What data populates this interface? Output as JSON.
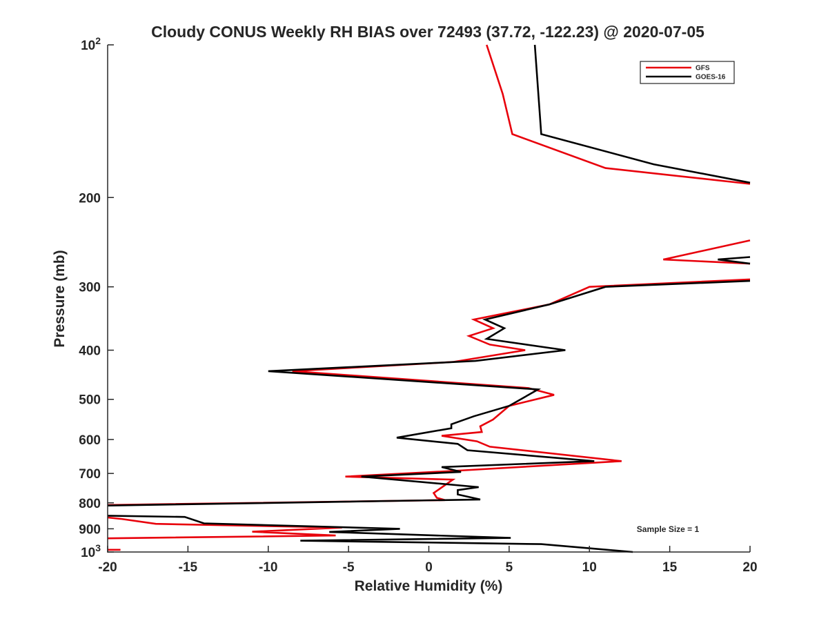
{
  "chart_data": {
    "type": "line",
    "title": "Cloudy CONUS Weekly RH BIAS over 72493 (37.72, -122.23) @ 2020-07-05",
    "xlabel": "Relative Humidity (%)",
    "ylabel": "Pressure (mb)",
    "xlim": [
      -20,
      20
    ],
    "ylim": [
      100,
      1000
    ],
    "y_scale": "log",
    "y_reversed": true,
    "grid": false,
    "legend_position": "top-right",
    "x_ticks": [
      {
        "value": -20,
        "label": "-20"
      },
      {
        "value": -15,
        "label": "-15"
      },
      {
        "value": -10,
        "label": "-10"
      },
      {
        "value": -5,
        "label": "-5"
      },
      {
        "value": 0,
        "label": "0"
      },
      {
        "value": 5,
        "label": "5"
      },
      {
        "value": 10,
        "label": "10"
      },
      {
        "value": 15,
        "label": "15"
      },
      {
        "value": 20,
        "label": "20"
      }
    ],
    "y_ticks": [
      {
        "value": 100,
        "base": "10",
        "exp": "2"
      },
      {
        "value": 200,
        "label": "200"
      },
      {
        "value": 300,
        "label": "300"
      },
      {
        "value": 400,
        "label": "400"
      },
      {
        "value": 500,
        "label": "500"
      },
      {
        "value": 600,
        "label": "600"
      },
      {
        "value": 700,
        "label": "700"
      },
      {
        "value": 800,
        "label": "800"
      },
      {
        "value": 900,
        "label": "900"
      },
      {
        "value": 1000,
        "base": "10",
        "exp": "3"
      }
    ],
    "series": [
      {
        "name": "GFS",
        "color": "#e8000b",
        "points": [
          [
            3.6,
            100
          ],
          [
            4.6,
            125
          ],
          [
            5.2,
            150
          ],
          [
            11.0,
            175
          ],
          [
            20,
            188
          ],
          [
            null,
            null
          ],
          [
            20,
            243
          ],
          [
            14.6,
            265
          ],
          [
            20,
            270
          ],
          [
            null,
            null
          ],
          [
            20,
            290
          ],
          [
            10.0,
            300
          ],
          [
            7.5,
            325
          ],
          [
            2.8,
            348
          ],
          [
            4.0,
            362
          ],
          [
            2.5,
            375
          ],
          [
            3.8,
            390
          ],
          [
            6.0,
            400
          ],
          [
            1.5,
            422
          ],
          [
            -8.5,
            440
          ],
          [
            6.2,
            475
          ],
          [
            7.8,
            490
          ],
          [
            5.0,
            515
          ],
          [
            4.0,
            548
          ],
          [
            3.2,
            565
          ],
          [
            3.3,
            580
          ],
          [
            0.8,
            590
          ],
          [
            3.0,
            605
          ],
          [
            3.8,
            620
          ],
          [
            12.0,
            662
          ],
          [
            1.5,
            692
          ],
          [
            -5.2,
            710
          ],
          [
            1.5,
            720
          ],
          [
            0.3,
            765
          ],
          [
            0.5,
            782
          ],
          [
            1.0,
            790
          ],
          [
            -20,
            808
          ],
          [
            null,
            null
          ],
          [
            -20,
            855
          ],
          [
            -19.2,
            860
          ],
          [
            -17.0,
            880
          ],
          [
            -5.4,
            895
          ],
          [
            -11.0,
            912
          ],
          [
            -5.8,
            928
          ],
          [
            -20,
            940
          ],
          [
            null,
            null
          ],
          [
            -20,
            990
          ],
          [
            -19.2,
            990
          ]
        ]
      },
      {
        "name": "GOES-16",
        "color": "#000000",
        "points": [
          [
            6.6,
            100
          ],
          [
            7.0,
            150
          ],
          [
            14.0,
            172
          ],
          [
            20,
            187
          ],
          [
            null,
            null
          ],
          [
            20,
            262
          ],
          [
            18.0,
            265
          ],
          [
            20,
            270
          ],
          [
            null,
            null
          ],
          [
            20,
            292
          ],
          [
            11.0,
            300
          ],
          [
            7.5,
            325
          ],
          [
            3.5,
            348
          ],
          [
            4.7,
            362
          ],
          [
            3.6,
            380
          ],
          [
            8.5,
            400
          ],
          [
            2.9,
            420
          ],
          [
            -10.0,
            440
          ],
          [
            6.8,
            478
          ],
          [
            5.0,
            515
          ],
          [
            2.8,
            540
          ],
          [
            1.4,
            560
          ],
          [
            1.4,
            570
          ],
          [
            -2.0,
            595
          ],
          [
            1.8,
            612
          ],
          [
            2.4,
            630
          ],
          [
            10.3,
            662
          ],
          [
            0.8,
            680
          ],
          [
            2.0,
            695
          ],
          [
            -4.2,
            710
          ],
          [
            3.1,
            745
          ],
          [
            1.8,
            755
          ],
          [
            1.8,
            770
          ],
          [
            3.2,
            788
          ],
          [
            -20,
            810
          ],
          [
            null,
            null
          ],
          [
            -20,
            848
          ],
          [
            -15.2,
            853
          ],
          [
            -14.0,
            878
          ],
          [
            -1.8,
            900
          ],
          [
            -6.2,
            913
          ],
          [
            5.1,
            938
          ],
          [
            -8.0,
            950
          ],
          [
            7.0,
            965
          ],
          [
            12.7,
            1000
          ]
        ]
      }
    ],
    "annotations": [
      {
        "text": "Sample Size = 1",
        "x": 15,
        "y": 900
      }
    ]
  }
}
